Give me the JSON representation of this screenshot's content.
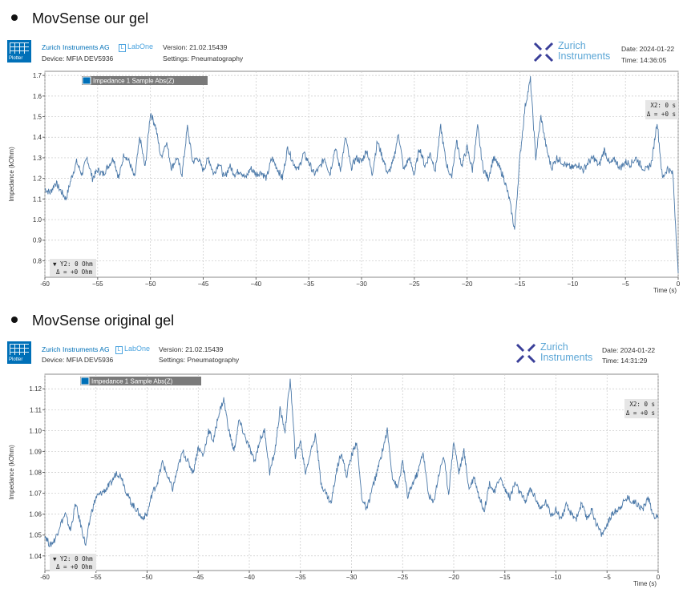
{
  "sections": [
    {
      "heading": "MovSense our gel",
      "header": {
        "company": "Zurich Instruments AG",
        "labone": "LabOne",
        "device": "Device: MFIA DEV5936",
        "version": "Version: 21.02.15439",
        "settings": "Settings: Pneumatography",
        "brand_line1": "Zurich",
        "brand_line2": "Instruments",
        "date": "Date: 2024-01-22",
        "time": "Time: 14:36:05",
        "plotter_label": "Plotter"
      },
      "cursor_x": {
        "line1": "X2: 0 s",
        "line2": "Δ = +0 s"
      },
      "cursor_y": {
        "line1": "▼ Y2: 0 Ohm",
        "line2": "Δ = +0 Ohm"
      }
    },
    {
      "heading": "MovSense original gel",
      "header": {
        "company": "Zurich Instruments AG",
        "labone": "LabOne",
        "device": "Device: MFIA DEV5936",
        "version": "Version: 21.02.15439",
        "settings": "Settings: Pneumatography",
        "brand_line1": "Zurich",
        "brand_line2": "Instruments",
        "date": "Date: 2024-01-22",
        "time": "Time: 14:31:29",
        "plotter_label": "Plotter"
      },
      "cursor_x": {
        "line1": "X2: 0 s",
        "line2": "Δ = +0 s"
      },
      "cursor_y": {
        "line1": "▼ Y2: 0 Ohm",
        "line2": "Δ = +0 Ohm"
      }
    }
  ],
  "colors": {
    "trace": "#4a78a8",
    "accent": "#0070b8",
    "legend_bg": "#7a7a7a",
    "grid": "#c8c8c8"
  },
  "chart_data": [
    {
      "type": "line",
      "xlabel": "Time (s)",
      "ylabel": "Impedance (kOhm)",
      "xlim": [
        -60,
        0
      ],
      "ylim": [
        0.72,
        1.72
      ],
      "xticks": [
        -60,
        -55,
        -50,
        -45,
        -40,
        -35,
        -30,
        -25,
        -20,
        -15,
        -10,
        -5,
        0
      ],
      "xtick_labels": [
        "-60",
        "−55",
        "−50",
        "−45",
        "−40",
        "−35",
        "−30",
        "−25",
        "−20",
        "−15",
        "−10",
        "−5",
        "0"
      ],
      "yticks": [
        0.8,
        0.9,
        1.0,
        1.1,
        1.2,
        1.3,
        1.4,
        1.5,
        1.6,
        1.7
      ],
      "ytick_labels": [
        "0.8",
        "0.9",
        "1.0",
        "1.1",
        "1.2",
        "1.3",
        "1.4",
        "1.5",
        "1.6",
        "1.7"
      ],
      "grid": true,
      "legend_position": "top-left",
      "series": [
        {
          "name": "Impedance 1 Sample Abs(Z)",
          "x": [
            -60,
            -59.5,
            -59,
            -58.5,
            -58,
            -57.5,
            -57,
            -56.5,
            -56,
            -55.5,
            -55,
            -54.5,
            -54,
            -53.5,
            -53,
            -52.5,
            -52,
            -51.5,
            -51,
            -50.5,
            -50,
            -49.5,
            -49,
            -48.5,
            -48,
            -47.5,
            -47,
            -46.5,
            -46,
            -45.5,
            -45,
            -44.5,
            -44,
            -43.5,
            -43,
            -42.5,
            -42,
            -41.5,
            -41,
            -40.5,
            -40,
            -39.5,
            -39,
            -38.5,
            -38,
            -37.5,
            -37,
            -36.5,
            -36,
            -35.5,
            -35,
            -34.5,
            -34,
            -33.5,
            -33,
            -32.5,
            -32,
            -31.5,
            -31,
            -30.5,
            -30,
            -29.5,
            -29,
            -28.5,
            -28,
            -27.5,
            -27,
            -26.5,
            -26,
            -25.5,
            -25,
            -24.5,
            -24,
            -23.5,
            -23,
            -22.5,
            -22,
            -21.5,
            -21,
            -20.5,
            -20,
            -19.5,
            -19,
            -18.5,
            -18,
            -17.5,
            -17,
            -16.5,
            -16,
            -15.5,
            -15,
            -14.5,
            -14,
            -13.5,
            -13,
            -12.5,
            -12,
            -11.5,
            -11,
            -10.5,
            -10,
            -9.5,
            -9,
            -8.5,
            -8,
            -7.5,
            -7,
            -6.5,
            -6,
            -5.5,
            -5,
            -4.5,
            -4,
            -3.5,
            -3,
            -2.5,
            -2,
            -1.5,
            -1,
            -0.5,
            0
          ],
          "y": [
            1.15,
            1.13,
            1.18,
            1.14,
            1.1,
            1.2,
            1.28,
            1.22,
            1.3,
            1.2,
            1.24,
            1.22,
            1.26,
            1.3,
            1.2,
            1.32,
            1.28,
            1.2,
            1.4,
            1.25,
            1.52,
            1.45,
            1.3,
            1.38,
            1.25,
            1.3,
            1.22,
            1.45,
            1.28,
            1.3,
            1.24,
            1.3,
            1.22,
            1.28,
            1.2,
            1.26,
            1.22,
            1.24,
            1.2,
            1.25,
            1.22,
            1.23,
            1.2,
            1.3,
            1.25,
            1.2,
            1.35,
            1.28,
            1.24,
            1.32,
            1.28,
            1.22,
            1.25,
            1.3,
            1.22,
            1.35,
            1.24,
            1.4,
            1.25,
            1.3,
            1.28,
            1.34,
            1.22,
            1.38,
            1.3,
            1.22,
            1.28,
            1.42,
            1.24,
            1.3,
            1.22,
            1.35,
            1.26,
            1.32,
            1.24,
            1.45,
            1.28,
            1.2,
            1.38,
            1.26,
            1.35,
            1.24,
            1.45,
            1.25,
            1.2,
            1.3,
            1.26,
            1.2,
            1.1,
            0.95,
            1.3,
            1.55,
            1.68,
            1.3,
            1.5,
            1.35,
            1.25,
            1.3,
            1.28,
            1.26,
            1.25,
            1.27,
            1.24,
            1.28,
            1.3,
            1.26,
            1.34,
            1.27,
            1.29,
            1.25,
            1.28,
            1.27,
            1.3,
            1.26,
            1.24,
            1.28,
            1.48,
            1.2,
            1.25,
            1.22,
            0.74
          ]
        }
      ]
    },
    {
      "type": "line",
      "xlabel": "Time (s)",
      "ylabel": "Impedance (kOhm)",
      "xlim": [
        -60,
        0
      ],
      "ylim": [
        1.033,
        1.127
      ],
      "xticks": [
        -60,
        -55,
        -50,
        -45,
        -40,
        -35,
        -30,
        -25,
        -20,
        -15,
        -10,
        -5,
        0
      ],
      "xtick_labels": [
        "-60",
        "−55",
        "−50",
        "−45",
        "−40",
        "−35",
        "−30",
        "−25",
        "−20",
        "−15",
        "−10",
        "−5",
        "0"
      ],
      "yticks": [
        1.04,
        1.05,
        1.06,
        1.07,
        1.08,
        1.09,
        1.1,
        1.11,
        1.12
      ],
      "ytick_labels": [
        "1.04",
        "1.05",
        "1.06",
        "1.07",
        "1.08",
        "1.09",
        "1.10",
        "1.11",
        "1.12"
      ],
      "grid": true,
      "legend_position": "top-left",
      "series": [
        {
          "name": "Impedance 1 Sample Abs(Z)",
          "x": [
            -60,
            -59.5,
            -59,
            -58.5,
            -58,
            -57.5,
            -57,
            -56.5,
            -56,
            -55.5,
            -55,
            -54.5,
            -54,
            -53.5,
            -53,
            -52.5,
            -52,
            -51.5,
            -51,
            -50.5,
            -50,
            -49.5,
            -49,
            -48.5,
            -48,
            -47.5,
            -47,
            -46.5,
            -46,
            -45.5,
            -45,
            -44.5,
            -44,
            -43.5,
            -43,
            -42.5,
            -42,
            -41.5,
            -41,
            -40.5,
            -40,
            -39.5,
            -39,
            -38.5,
            -38,
            -37.5,
            -37,
            -36.5,
            -36,
            -35.5,
            -35,
            -34.5,
            -34,
            -33.5,
            -33,
            -32.5,
            -32,
            -31.5,
            -31,
            -30.5,
            -30,
            -29.5,
            -29,
            -28.5,
            -28,
            -27.5,
            -27,
            -26.5,
            -26,
            -25.5,
            -25,
            -24.5,
            -24,
            -23.5,
            -23,
            -22.5,
            -22,
            -21.5,
            -21,
            -20.5,
            -20,
            -19.5,
            -19,
            -18.5,
            -18,
            -17.5,
            -17,
            -16.5,
            -16,
            -15.5,
            -15,
            -14.5,
            -14,
            -13.5,
            -13,
            -12.5,
            -12,
            -11.5,
            -11,
            -10.5,
            -10,
            -9.5,
            -9,
            -8.5,
            -8,
            -7.5,
            -7,
            -6.5,
            -6,
            -5.5,
            -5,
            -4.5,
            -4,
            -3.5,
            -3,
            -2.5,
            -2,
            -1.5,
            -1,
            -0.5,
            0
          ],
          "y": [
            1.05,
            1.045,
            1.048,
            1.055,
            1.06,
            1.052,
            1.065,
            1.055,
            1.045,
            1.06,
            1.068,
            1.07,
            1.072,
            1.075,
            1.08,
            1.078,
            1.07,
            1.065,
            1.062,
            1.058,
            1.06,
            1.07,
            1.075,
            1.085,
            1.078,
            1.072,
            1.082,
            1.09,
            1.085,
            1.08,
            1.092,
            1.088,
            1.1,
            1.095,
            1.108,
            1.115,
            1.1,
            1.09,
            1.105,
            1.098,
            1.092,
            1.085,
            1.095,
            1.1,
            1.08,
            1.09,
            1.11,
            1.1,
            1.125,
            1.088,
            1.095,
            1.08,
            1.09,
            1.098,
            1.075,
            1.07,
            1.065,
            1.08,
            1.09,
            1.078,
            1.088,
            1.095,
            1.068,
            1.062,
            1.072,
            1.08,
            1.09,
            1.1,
            1.078,
            1.072,
            1.085,
            1.068,
            1.075,
            1.08,
            1.09,
            1.07,
            1.065,
            1.078,
            1.088,
            1.07,
            1.095,
            1.08,
            1.09,
            1.072,
            1.078,
            1.068,
            1.062,
            1.075,
            1.07,
            1.078,
            1.072,
            1.068,
            1.075,
            1.07,
            1.066,
            1.072,
            1.068,
            1.062,
            1.066,
            1.06,
            1.062,
            1.058,
            1.064,
            1.06,
            1.058,
            1.065,
            1.058,
            1.062,
            1.055,
            1.05,
            1.055,
            1.06,
            1.062,
            1.065,
            1.068,
            1.066,
            1.065,
            1.062,
            1.068,
            1.06,
            1.058
          ]
        }
      ]
    }
  ]
}
